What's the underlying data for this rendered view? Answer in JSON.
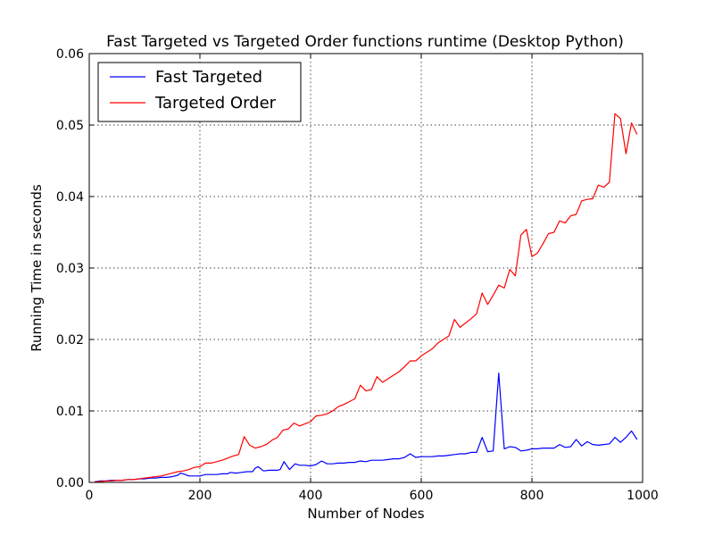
{
  "chart_data": {
    "type": "line",
    "title": "Fast Targeted vs Targeted Order functions runtime (Desktop Python)",
    "xlabel": "Number of Nodes",
    "ylabel": "Running Time in seconds",
    "xlim": [
      0,
      1000
    ],
    "ylim": [
      0,
      0.06
    ],
    "xticks": [
      0,
      200,
      400,
      600,
      800,
      1000
    ],
    "xtick_labels": [
      "0",
      "200",
      "400",
      "600",
      "800",
      "1000"
    ],
    "yticks": [
      0,
      0.01,
      0.02,
      0.03,
      0.04,
      0.05,
      0.06
    ],
    "ytick_labels": [
      "0.00",
      "0.01",
      "0.02",
      "0.03",
      "0.04",
      "0.05",
      "0.06"
    ],
    "grid": true,
    "legend_position": "top-left",
    "series": [
      {
        "name": "Fast Targeted",
        "color": "#0000ff",
        "points": [
          [
            10,
            0.0001
          ],
          [
            20,
            0.0002
          ],
          [
            30,
            0.0002
          ],
          [
            40,
            0.0003
          ],
          [
            50,
            0.0003
          ],
          [
            60,
            0.0003
          ],
          [
            70,
            0.0004
          ],
          [
            80,
            0.0004
          ],
          [
            90,
            0.0005
          ],
          [
            100,
            0.0005
          ],
          [
            110,
            0.0006
          ],
          [
            120,
            0.0006
          ],
          [
            130,
            0.0007
          ],
          [
            140,
            0.0007
          ],
          [
            150,
            0.0008
          ],
          [
            160,
            0.001
          ],
          [
            165,
            0.0013
          ],
          [
            170,
            0.0012
          ],
          [
            180,
            0.0009
          ],
          [
            190,
            0.0009
          ],
          [
            200,
            0.0009
          ],
          [
            210,
            0.0011
          ],
          [
            220,
            0.0011
          ],
          [
            230,
            0.0011
          ],
          [
            240,
            0.0012
          ],
          [
            250,
            0.0012
          ],
          [
            255,
            0.0014
          ],
          [
            265,
            0.0013
          ],
          [
            275,
            0.0014
          ],
          [
            285,
            0.0015
          ],
          [
            295,
            0.0015
          ],
          [
            300,
            0.002
          ],
          [
            305,
            0.0022
          ],
          [
            315,
            0.0016
          ],
          [
            325,
            0.0017
          ],
          [
            340,
            0.0017
          ],
          [
            345,
            0.0018
          ],
          [
            352,
            0.0029
          ],
          [
            362,
            0.0018
          ],
          [
            372,
            0.0026
          ],
          [
            380,
            0.0024
          ],
          [
            390,
            0.0024
          ],
          [
            400,
            0.0023
          ],
          [
            410,
            0.0025
          ],
          [
            420,
            0.003
          ],
          [
            430,
            0.0026
          ],
          [
            440,
            0.0026
          ],
          [
            450,
            0.0027
          ],
          [
            460,
            0.0027
          ],
          [
            470,
            0.0028
          ],
          [
            480,
            0.0028
          ],
          [
            490,
            0.003
          ],
          [
            500,
            0.0029
          ],
          [
            510,
            0.0031
          ],
          [
            520,
            0.0031
          ],
          [
            530,
            0.0031
          ],
          [
            540,
            0.0032
          ],
          [
            550,
            0.0033
          ],
          [
            560,
            0.0033
          ],
          [
            570,
            0.0035
          ],
          [
            580,
            0.004
          ],
          [
            590,
            0.0035
          ],
          [
            600,
            0.0036
          ],
          [
            610,
            0.0036
          ],
          [
            620,
            0.0036
          ],
          [
            630,
            0.0037
          ],
          [
            640,
            0.0037
          ],
          [
            650,
            0.0038
          ],
          [
            660,
            0.0039
          ],
          [
            670,
            0.004
          ],
          [
            680,
            0.004
          ],
          [
            690,
            0.0042
          ],
          [
            700,
            0.0042
          ],
          [
            710,
            0.0063
          ],
          [
            720,
            0.0043
          ],
          [
            730,
            0.0044
          ],
          [
            740,
            0.0153
          ],
          [
            750,
            0.0047
          ],
          [
            760,
            0.005
          ],
          [
            770,
            0.0049
          ],
          [
            780,
            0.0044
          ],
          [
            790,
            0.0045
          ],
          [
            800,
            0.0047
          ],
          [
            810,
            0.0047
          ],
          [
            820,
            0.0048
          ],
          [
            830,
            0.0048
          ],
          [
            840,
            0.0048
          ],
          [
            850,
            0.0053
          ],
          [
            860,
            0.0049
          ],
          [
            870,
            0.005
          ],
          [
            880,
            0.006
          ],
          [
            890,
            0.0051
          ],
          [
            900,
            0.0057
          ],
          [
            910,
            0.0053
          ],
          [
            920,
            0.0052
          ],
          [
            930,
            0.0053
          ],
          [
            940,
            0.0054
          ],
          [
            950,
            0.0063
          ],
          [
            960,
            0.0056
          ],
          [
            970,
            0.0063
          ],
          [
            980,
            0.0072
          ],
          [
            990,
            0.006
          ]
        ]
      },
      {
        "name": "Targeted Order",
        "color": "#ff0000",
        "points": [
          [
            10,
            0.0001
          ],
          [
            20,
            0.0001
          ],
          [
            30,
            0.0002
          ],
          [
            40,
            0.0002
          ],
          [
            50,
            0.0003
          ],
          [
            60,
            0.0003
          ],
          [
            70,
            0.0004
          ],
          [
            80,
            0.0004
          ],
          [
            90,
            0.0005
          ],
          [
            100,
            0.0006
          ],
          [
            110,
            0.0007
          ],
          [
            120,
            0.0008
          ],
          [
            130,
            0.0009
          ],
          [
            140,
            0.0011
          ],
          [
            150,
            0.0013
          ],
          [
            160,
            0.0015
          ],
          [
            170,
            0.0016
          ],
          [
            180,
            0.0018
          ],
          [
            190,
            0.0021
          ],
          [
            200,
            0.0022
          ],
          [
            210,
            0.0027
          ],
          [
            220,
            0.0027
          ],
          [
            230,
            0.0029
          ],
          [
            240,
            0.0031
          ],
          [
            250,
            0.0034
          ],
          [
            260,
            0.0037
          ],
          [
            270,
            0.0039
          ],
          [
            280,
            0.0064
          ],
          [
            290,
            0.0052
          ],
          [
            300,
            0.0048
          ],
          [
            310,
            0.005
          ],
          [
            320,
            0.0053
          ],
          [
            330,
            0.0059
          ],
          [
            340,
            0.0063
          ],
          [
            350,
            0.0073
          ],
          [
            360,
            0.0075
          ],
          [
            370,
            0.0083
          ],
          [
            380,
            0.0079
          ],
          [
            390,
            0.0082
          ],
          [
            400,
            0.0085
          ],
          [
            410,
            0.0093
          ],
          [
            420,
            0.0094
          ],
          [
            430,
            0.0096
          ],
          [
            440,
            0.01
          ],
          [
            450,
            0.0106
          ],
          [
            460,
            0.0109
          ],
          [
            470,
            0.0113
          ],
          [
            480,
            0.0117
          ],
          [
            490,
            0.0136
          ],
          [
            500,
            0.0128
          ],
          [
            510,
            0.013
          ],
          [
            520,
            0.0148
          ],
          [
            530,
            0.014
          ],
          [
            540,
            0.0145
          ],
          [
            550,
            0.015
          ],
          [
            560,
            0.0155
          ],
          [
            570,
            0.0162
          ],
          [
            580,
            0.017
          ],
          [
            590,
            0.017
          ],
          [
            600,
            0.0177
          ],
          [
            610,
            0.0182
          ],
          [
            620,
            0.0187
          ],
          [
            630,
            0.0195
          ],
          [
            640,
            0.02
          ],
          [
            650,
            0.0205
          ],
          [
            660,
            0.0228
          ],
          [
            670,
            0.0217
          ],
          [
            680,
            0.0223
          ],
          [
            690,
            0.0229
          ],
          [
            700,
            0.0236
          ],
          [
            710,
            0.0265
          ],
          [
            720,
            0.0249
          ],
          [
            730,
            0.0262
          ],
          [
            740,
            0.0276
          ],
          [
            750,
            0.0272
          ],
          [
            760,
            0.0298
          ],
          [
            770,
            0.0289
          ],
          [
            780,
            0.0346
          ],
          [
            790,
            0.0354
          ],
          [
            800,
            0.0316
          ],
          [
            810,
            0.0321
          ],
          [
            820,
            0.0334
          ],
          [
            830,
            0.0348
          ],
          [
            840,
            0.035
          ],
          [
            850,
            0.0366
          ],
          [
            860,
            0.0363
          ],
          [
            870,
            0.0373
          ],
          [
            880,
            0.0375
          ],
          [
            890,
            0.0394
          ],
          [
            900,
            0.0396
          ],
          [
            910,
            0.0397
          ],
          [
            920,
            0.0416
          ],
          [
            930,
            0.0413
          ],
          [
            940,
            0.042
          ],
          [
            950,
            0.0516
          ],
          [
            960,
            0.0509
          ],
          [
            970,
            0.046
          ],
          [
            980,
            0.0503
          ],
          [
            990,
            0.0487
          ]
        ]
      }
    ]
  }
}
